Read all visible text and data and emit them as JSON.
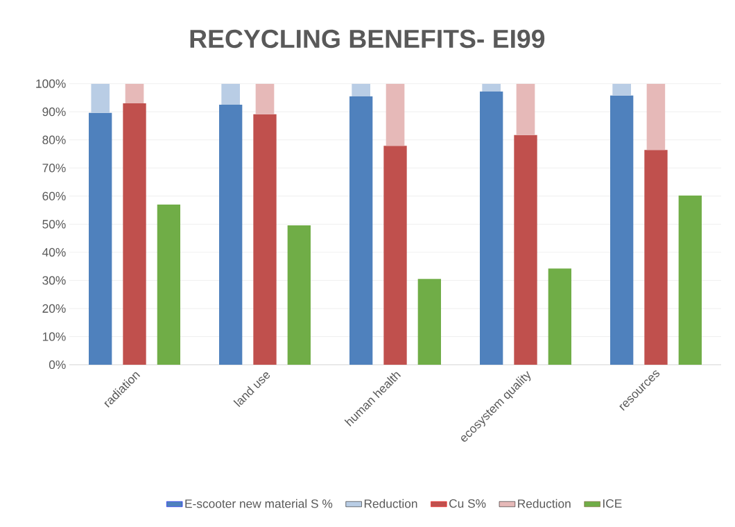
{
  "chart_data": {
    "type": "bar",
    "title": "RECYCLING BENEFITS- EI99",
    "categories": [
      "radiation",
      "land use",
      "human health",
      "ecosystem quality",
      "resources"
    ],
    "series": [
      {
        "name": "E-scooter new material S %",
        "color": "#4f81bd",
        "values": [
          89.6,
          92.5,
          95.5,
          97.2,
          95.8
        ]
      },
      {
        "name": "Reduction",
        "color": "#b9cde5",
        "base": [
          89.6,
          92.5,
          95.5,
          97.2,
          95.8
        ],
        "values": [
          10.4,
          7.5,
          4.5,
          2.8,
          4.2
        ]
      },
      {
        "name": "Cu S%",
        "color": "#c0504d",
        "values": [
          93.0,
          89.1,
          77.9,
          81.7,
          76.4
        ]
      },
      {
        "name": "Reduction",
        "color": "#e6b9b8",
        "base": [
          93.0,
          89.1,
          77.9,
          81.7,
          76.4
        ],
        "values": [
          7.0,
          10.9,
          22.1,
          18.3,
          23.6
        ]
      },
      {
        "name": "ICE",
        "color": "#70ad47",
        "values": [
          57.0,
          49.6,
          30.5,
          34.2,
          60.2
        ]
      }
    ],
    "ylim": [
      0,
      100
    ],
    "yticks": [
      {
        "value": 0,
        "label": "0%"
      },
      {
        "value": 10,
        "label": "10%"
      },
      {
        "value": 20,
        "label": "20%"
      },
      {
        "value": 30,
        "label": "30%"
      },
      {
        "value": 40,
        "label": "40%"
      },
      {
        "value": 50,
        "label": "50%"
      },
      {
        "value": 60,
        "label": "60%"
      },
      {
        "value": 70,
        "label": "70%"
      },
      {
        "value": 80,
        "label": "80%"
      },
      {
        "value": 90,
        "label": "90%"
      },
      {
        "value": 100,
        "label": "100%"
      }
    ],
    "grid": "y",
    "legend": "bottom"
  }
}
